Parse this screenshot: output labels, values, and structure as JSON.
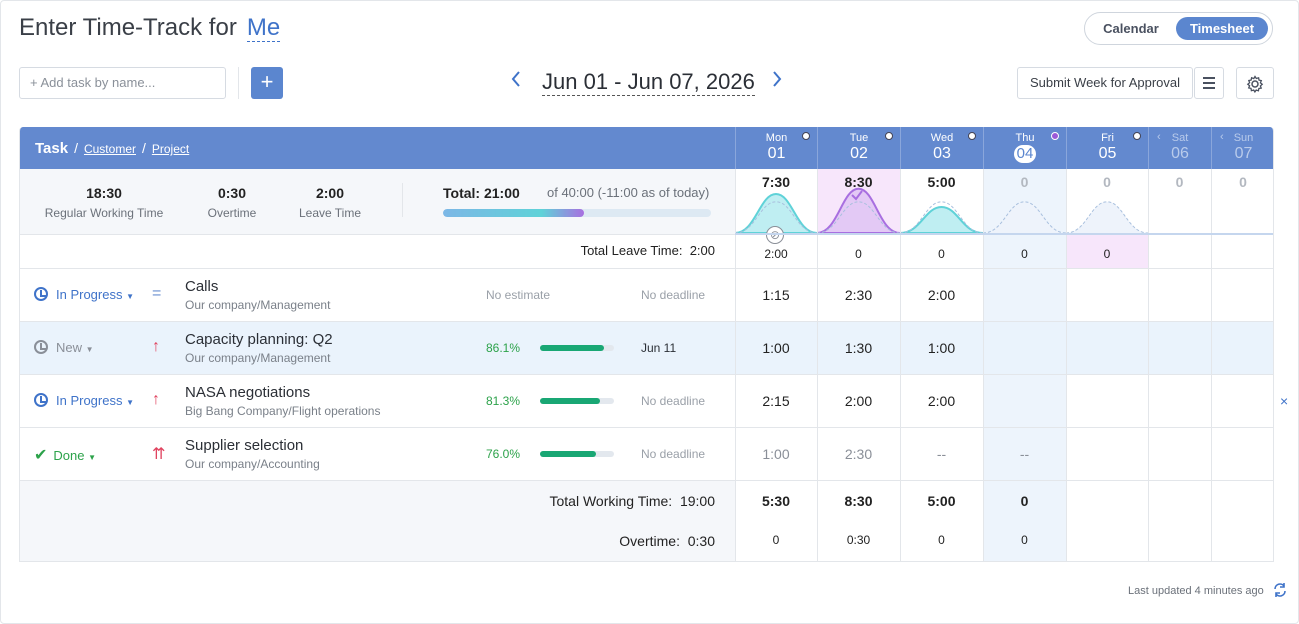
{
  "header": {
    "title": "Enter Time-Track for",
    "user": "Me",
    "view_options": [
      "Calendar",
      "Timesheet"
    ],
    "active_view": "Timesheet"
  },
  "toolbar": {
    "add_task_placeholder": "+ Add task by name...",
    "add_button": "+",
    "date_range": "Jun 01 - Jun 07, 2026",
    "prev": "‹",
    "next": "›",
    "submit_label": "Submit Week for Approval",
    "menu_icon": "menu-icon",
    "settings_icon": "gear-icon"
  },
  "grid_header": {
    "task": "Task",
    "customer": "Customer",
    "project": "Project",
    "days": [
      {
        "name": "Mon",
        "date": "01"
      },
      {
        "name": "Tue",
        "date": "02"
      },
      {
        "name": "Wed",
        "date": "03"
      },
      {
        "name": "Thu",
        "date": "04"
      },
      {
        "name": "Fri",
        "date": "05"
      },
      {
        "name": "Sat",
        "date": "06"
      },
      {
        "name": "Sun",
        "date": "07"
      }
    ]
  },
  "summary": {
    "regular_value": "18:30",
    "regular_label": "Regular Working Time",
    "overtime_value": "0:30",
    "overtime_label": "Overtime",
    "leave_value": "2:00",
    "leave_label": "Leave Time",
    "total_label": "Total: 21:00",
    "total_of": "of 40:00 (-11:00 as of today)",
    "progress_fraction": 0.525,
    "day_totals": [
      "7:30",
      "8:30",
      "5:00",
      "0",
      "0",
      "0",
      "0"
    ],
    "day_levels": [
      0.75,
      0.85,
      0.5,
      0,
      0,
      0,
      0
    ]
  },
  "leave_row": {
    "label": "Total Leave Time:",
    "value": "2:00",
    "days": [
      "2:00",
      "0",
      "0",
      "0",
      "0",
      "",
      ""
    ]
  },
  "tasks": [
    {
      "status": "In Progress",
      "status_color": "#3f73c9",
      "priority_icon": "equals-icon",
      "priority": "=",
      "name": "Calls",
      "customer": "Our company",
      "project": "Management",
      "estimate": "No estimate",
      "pct": "",
      "pct_value": null,
      "deadline": "No deadline",
      "days": [
        "1:15",
        "2:30",
        "2:00",
        "",
        "",
        "",
        ""
      ]
    },
    {
      "status": "New",
      "status_color": "#8a8f98",
      "priority_icon": "arrow-up-icon",
      "priority": "↑",
      "name": "Capacity planning: Q2",
      "customer": "Our company",
      "project": "Management",
      "estimate": "",
      "pct": "86.1%",
      "pct_value": 0.861,
      "deadline": "Jun 11",
      "days": [
        "1:00",
        "1:30",
        "1:00",
        "",
        "",
        "",
        ""
      ]
    },
    {
      "status": "In Progress",
      "status_color": "#3f73c9",
      "priority_icon": "arrow-up-icon",
      "priority": "↑",
      "name": "NASA negotiations",
      "customer": "Big Bang Company",
      "project": "Flight operations",
      "estimate": "",
      "pct": "81.3%",
      "pct_value": 0.813,
      "deadline": "No deadline",
      "days": [
        "2:15",
        "2:00",
        "2:00",
        "",
        "",
        "",
        ""
      ]
    },
    {
      "status": "Done",
      "status_color": "#2ca24a",
      "priority_icon": "double-arrow-up-icon",
      "priority": "⇈",
      "name": "Supplier selection",
      "customer": "Our company",
      "project": "Accounting",
      "estimate": "",
      "pct": "76.0%",
      "pct_value": 0.76,
      "deadline": "No deadline",
      "days": [
        "1:00",
        "2:30",
        "--",
        "--",
        "",
        "",
        ""
      ]
    }
  ],
  "totals": {
    "working_label": "Total Working Time:",
    "working_value": "19:00",
    "working_days": [
      "5:30",
      "8:30",
      "5:00",
      "0",
      "",
      "",
      ""
    ],
    "overtime_label": "Overtime:",
    "overtime_value": "0:30",
    "overtime_days": [
      "0",
      "0:30",
      "0",
      "0",
      "",
      "",
      ""
    ]
  },
  "footer": {
    "last_updated": "Last updated 4 minutes ago",
    "close": "×"
  },
  "colors": {
    "accent": "#5b86cf",
    "header_bg": "#6389cf",
    "curve_cyan": "#5fd2d8",
    "curve_purple": "#a86fe0"
  }
}
